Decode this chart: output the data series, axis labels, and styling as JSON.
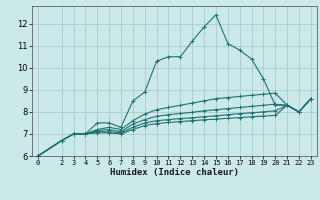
{
  "xlabel": "Humidex (Indice chaleur)",
  "xlim": [
    -0.5,
    23.5
  ],
  "ylim": [
    6,
    12.8
  ],
  "yticks": [
    6,
    7,
    8,
    9,
    10,
    11,
    12
  ],
  "xticks": [
    0,
    2,
    3,
    4,
    5,
    6,
    7,
    8,
    9,
    10,
    11,
    12,
    13,
    14,
    15,
    16,
    17,
    18,
    19,
    20,
    21,
    22,
    23
  ],
  "bg_color": "#cce9e9",
  "grid_color": "#aacccc",
  "line_color": "#1e7272",
  "lines": [
    {
      "x": [
        0,
        2,
        3,
        4,
        5,
        6,
        7,
        8,
        9,
        10,
        11,
        12,
        13,
        14,
        15,
        16,
        17,
        18,
        19,
        20,
        21,
        22,
        23
      ],
      "y": [
        6.0,
        6.7,
        7.0,
        7.0,
        7.5,
        7.5,
        7.3,
        8.5,
        8.9,
        10.3,
        10.5,
        10.5,
        11.2,
        11.85,
        12.4,
        11.1,
        10.8,
        10.4,
        9.5,
        8.3,
        8.3,
        8.0,
        8.6
      ]
    },
    {
      "x": [
        0,
        2,
        3,
        4,
        5,
        6,
        7,
        8,
        9,
        10,
        11,
        12,
        13,
        14,
        15,
        16,
        17,
        18,
        19,
        20,
        21,
        22,
        23
      ],
      "y": [
        6.0,
        6.7,
        7.0,
        7.0,
        7.2,
        7.3,
        7.2,
        7.6,
        7.9,
        8.1,
        8.2,
        8.3,
        8.4,
        8.5,
        8.6,
        8.65,
        8.7,
        8.75,
        8.8,
        8.85,
        8.3,
        8.0,
        8.6
      ]
    },
    {
      "x": [
        0,
        2,
        3,
        4,
        5,
        6,
        7,
        8,
        9,
        10,
        11,
        12,
        13,
        14,
        15,
        16,
        17,
        18,
        19,
        20,
        21,
        22,
        23
      ],
      "y": [
        6.0,
        6.7,
        7.0,
        7.0,
        7.15,
        7.2,
        7.1,
        7.45,
        7.65,
        7.8,
        7.87,
        7.93,
        7.98,
        8.05,
        8.1,
        8.15,
        8.2,
        8.25,
        8.3,
        8.35,
        8.3,
        8.0,
        8.6
      ]
    },
    {
      "x": [
        0,
        2,
        3,
        4,
        5,
        6,
        7,
        8,
        9,
        10,
        11,
        12,
        13,
        14,
        15,
        16,
        17,
        18,
        19,
        20,
        21,
        22,
        23
      ],
      "y": [
        6.0,
        6.7,
        7.0,
        7.0,
        7.1,
        7.1,
        7.05,
        7.3,
        7.5,
        7.6,
        7.65,
        7.7,
        7.73,
        7.78,
        7.82,
        7.87,
        7.92,
        7.96,
        8.0,
        8.05,
        8.3,
        8.0,
        8.6
      ]
    },
    {
      "x": [
        0,
        2,
        3,
        4,
        5,
        6,
        7,
        8,
        9,
        10,
        11,
        12,
        13,
        14,
        15,
        16,
        17,
        18,
        19,
        20,
        21,
        22,
        23
      ],
      "y": [
        6.0,
        6.7,
        7.0,
        7.0,
        7.05,
        7.05,
        7.0,
        7.2,
        7.38,
        7.47,
        7.52,
        7.56,
        7.6,
        7.64,
        7.67,
        7.71,
        7.74,
        7.78,
        7.81,
        7.84,
        8.3,
        8.0,
        8.6
      ]
    }
  ]
}
